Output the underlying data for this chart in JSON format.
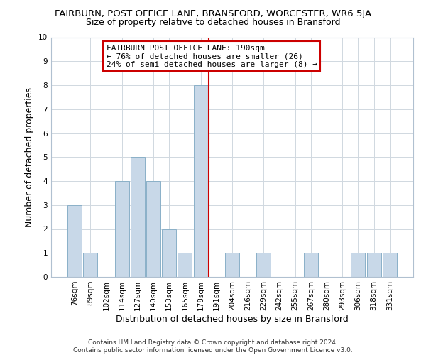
{
  "title": "FAIRBURN, POST OFFICE LANE, BRANSFORD, WORCESTER, WR6 5JA",
  "subtitle": "Size of property relative to detached houses in Bransford",
  "xlabel": "Distribution of detached houses by size in Bransford",
  "ylabel": "Number of detached properties",
  "footer_lines": [
    "Contains HM Land Registry data © Crown copyright and database right 2024.",
    "Contains public sector information licensed under the Open Government Licence v3.0."
  ],
  "bin_labels": [
    "76sqm",
    "89sqm",
    "102sqm",
    "114sqm",
    "127sqm",
    "140sqm",
    "153sqm",
    "165sqm",
    "178sqm",
    "191sqm",
    "204sqm",
    "216sqm",
    "229sqm",
    "242sqm",
    "255sqm",
    "267sqm",
    "280sqm",
    "293sqm",
    "306sqm",
    "318sqm",
    "331sqm"
  ],
  "bar_values": [
    3,
    1,
    0,
    4,
    5,
    4,
    2,
    1,
    8,
    0,
    1,
    0,
    1,
    0,
    0,
    1,
    0,
    0,
    1,
    1,
    1
  ],
  "bar_color": "#c8d8e8",
  "bar_edge_color": "#8ab0c8",
  "highlight_bin_index": 8,
  "highlight_line_color": "#cc0000",
  "ylim": [
    0,
    10
  ],
  "yticks": [
    0,
    1,
    2,
    3,
    4,
    5,
    6,
    7,
    8,
    9,
    10
  ],
  "annotation_text": "FAIRBURN POST OFFICE LANE: 190sqm\n← 76% of detached houses are smaller (26)\n24% of semi-detached houses are larger (8) →",
  "annotation_box_color": "#ffffff",
  "annotation_box_edge": "#cc0000",
  "title_fontsize": 9.5,
  "subtitle_fontsize": 9,
  "axis_label_fontsize": 9,
  "tick_fontsize": 7.5,
  "annotation_fontsize": 8,
  "footer_fontsize": 6.5
}
